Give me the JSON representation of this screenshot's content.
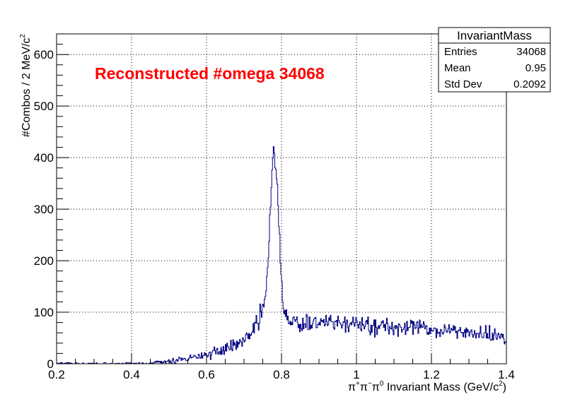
{
  "chart_data": {
    "type": "histogram",
    "title": "",
    "xlabel_parts": [
      "π",
      "+",
      "π",
      "−",
      "π",
      "0",
      " Invariant Mass (GeV/c",
      "2",
      ")"
    ],
    "ylabel_parts": [
      "#Combos / 2 MeV/c",
      "2"
    ],
    "xlim": [
      0.2,
      1.4
    ],
    "ylim": [
      0,
      640
    ],
    "bin_width": 0.002,
    "grid": true,
    "x_ticks": [
      0.2,
      0.4,
      0.6,
      0.8,
      1.0,
      1.2,
      1.4
    ],
    "x_tick_labels": [
      "0.2",
      "0.4",
      "0.6",
      "0.8",
      "1",
      "1.2",
      "1.4"
    ],
    "y_ticks": [
      0,
      100,
      200,
      300,
      400,
      500,
      600
    ],
    "y_tick_labels": [
      "0",
      "100",
      "200",
      "300",
      "400",
      "500",
      "600"
    ],
    "annotation": "Reconstructed #omega 34068",
    "line_color": "#000080",
    "annotation_color": "#ff0000",
    "profile": {
      "x": [
        0.44,
        0.46,
        0.5,
        0.55,
        0.6,
        0.65,
        0.7,
        0.72,
        0.74,
        0.75,
        0.76,
        0.765,
        0.77,
        0.775,
        0.78,
        0.785,
        0.79,
        0.795,
        0.8,
        0.805,
        0.81,
        0.815,
        0.82,
        0.83,
        0.85,
        0.9,
        1.0,
        1.05,
        1.1,
        1.2,
        1.3,
        1.4
      ],
      "y": [
        0,
        2,
        4,
        10,
        17,
        30,
        45,
        60,
        85,
        105,
        150,
        210,
        290,
        360,
        410,
        390,
        320,
        230,
        150,
        115,
        98,
        90,
        82,
        80,
        79,
        78,
        76,
        74,
        72,
        67,
        61,
        52
      ]
    },
    "seed": 7
  },
  "stats_box": {
    "title": "InvariantMass",
    "rows": [
      {
        "label": "Entries",
        "value": "34068"
      },
      {
        "label": "Mean",
        "value": "0.95"
      },
      {
        "label": "Std Dev",
        "value": "0.2092"
      }
    ]
  }
}
